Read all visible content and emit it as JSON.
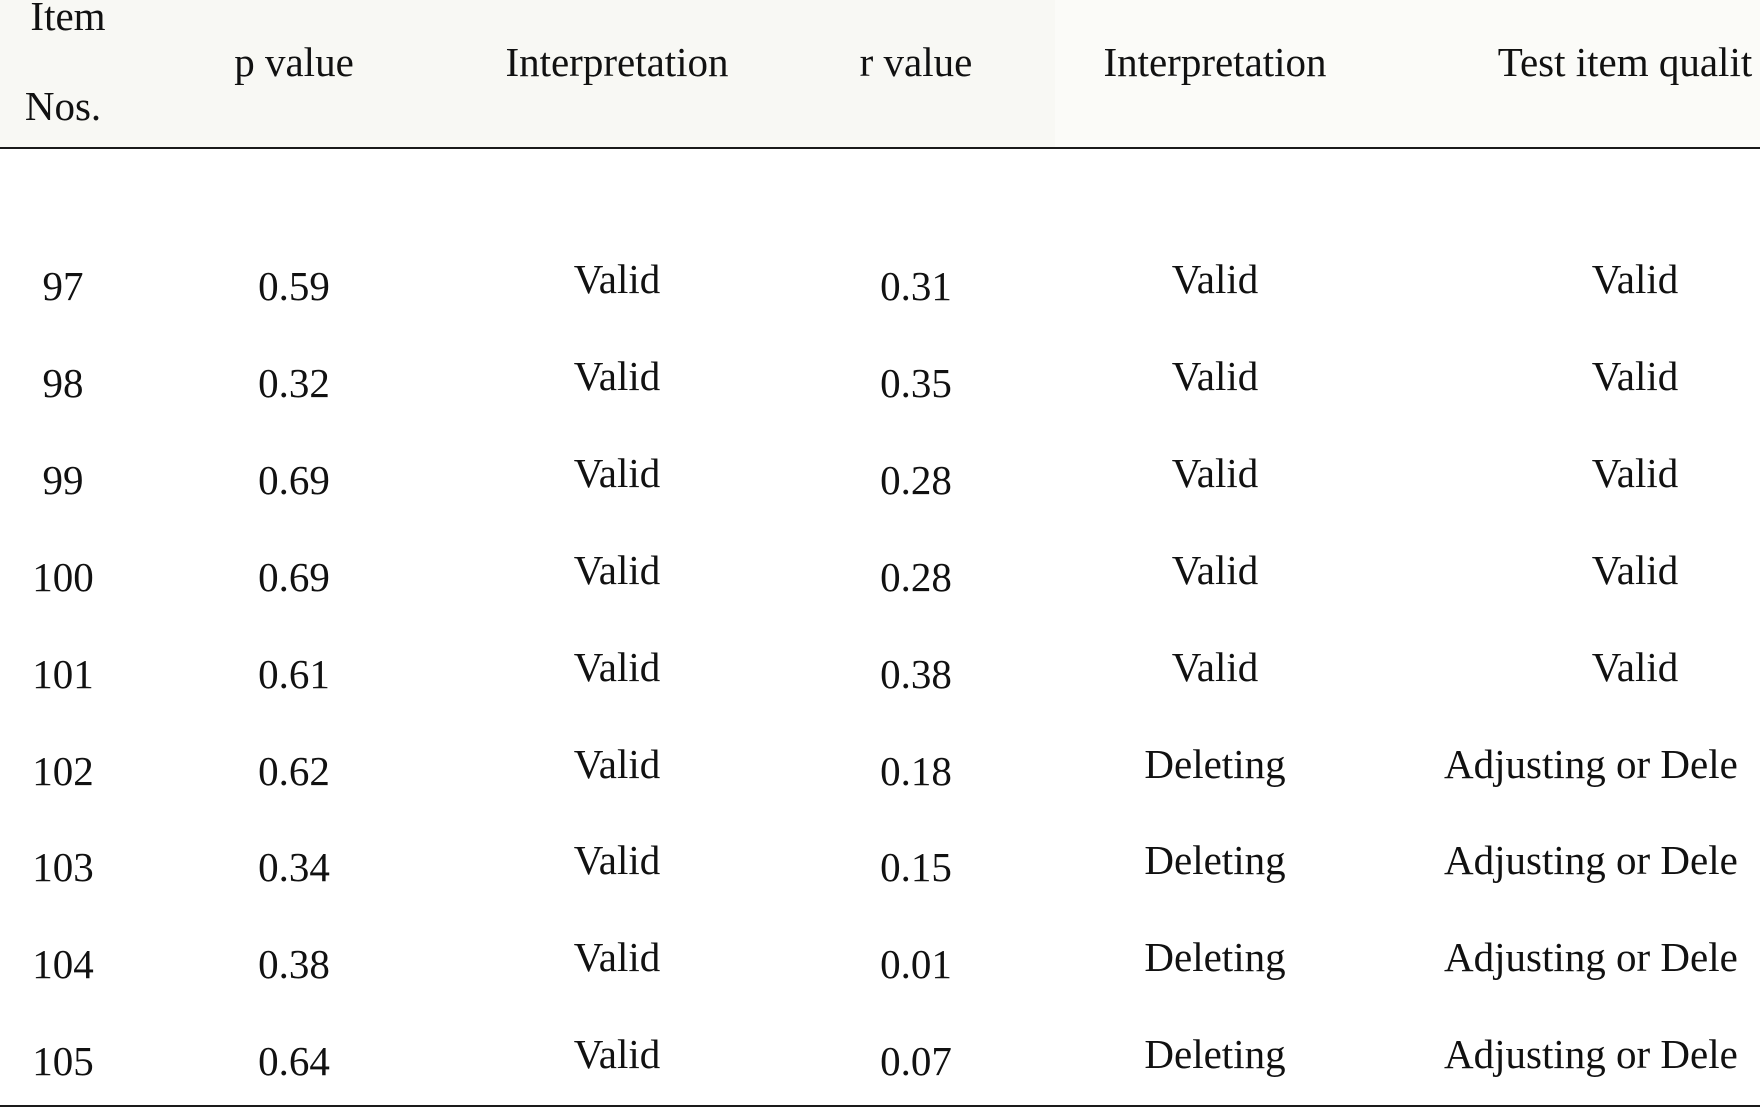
{
  "table": {
    "headers": [
      {
        "line1": "Item",
        "line2": "Nos."
      },
      {
        "label": "p value"
      },
      {
        "label": "Interpretation"
      },
      {
        "label": "r value"
      },
      {
        "label": "Interpretation"
      },
      {
        "label": "Test item qualit"
      }
    ],
    "rows": [
      {
        "item": "97",
        "p": "0.59",
        "p_interp": "Valid",
        "r": "0.31",
        "r_interp": "Valid",
        "quality": "Valid"
      },
      {
        "item": "98",
        "p": "0.32",
        "p_interp": "Valid",
        "r": "0.35",
        "r_interp": "Valid",
        "quality": "Valid"
      },
      {
        "item": "99",
        "p": "0.69",
        "p_interp": "Valid",
        "r": "0.28",
        "r_interp": "Valid",
        "quality": "Valid"
      },
      {
        "item": "100",
        "p": "0.69",
        "p_interp": "Valid",
        "r": "0.28",
        "r_interp": "Valid",
        "quality": "Valid"
      },
      {
        "item": "101",
        "p": "0.61",
        "p_interp": "Valid",
        "r": "0.38",
        "r_interp": "Valid",
        "quality": "Valid"
      },
      {
        "item": "102",
        "p": "0.62",
        "p_interp": "Valid",
        "r": "0.18",
        "r_interp": "Deleting",
        "quality": "Adjusting or Dele"
      },
      {
        "item": "103",
        "p": "0.34",
        "p_interp": "Valid",
        "r": "0.15",
        "r_interp": "Deleting",
        "quality": "Adjusting or Dele"
      },
      {
        "item": "104",
        "p": "0.38",
        "p_interp": "Valid",
        "r": "0.01",
        "r_interp": "Deleting",
        "quality": "Adjusting or Dele"
      },
      {
        "item": "105",
        "p": "0.64",
        "p_interp": "Valid",
        "r": "0.07",
        "r_interp": "Deleting",
        "quality": "Adjusting or Dele"
      }
    ]
  }
}
